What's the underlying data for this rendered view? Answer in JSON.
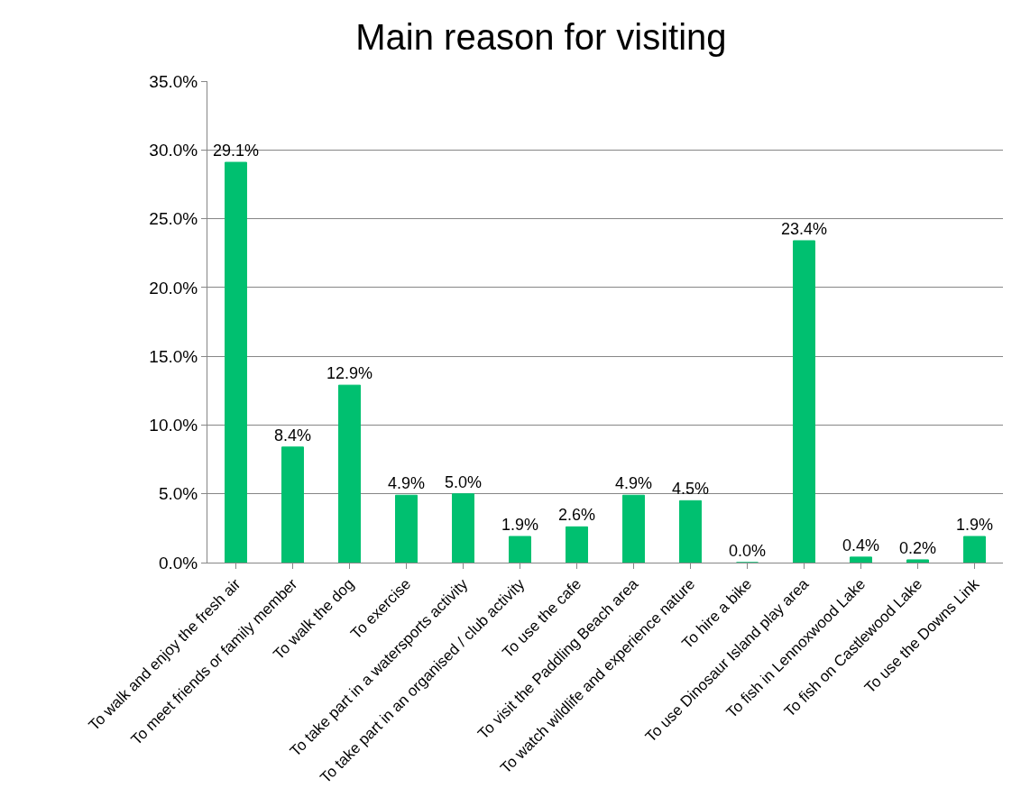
{
  "chart_data": {
    "type": "bar",
    "title": "Main reason for visiting",
    "categories": [
      "To walk and enjoy the fresh air",
      "To meet friends or family member",
      "To walk the dog",
      "To exercise",
      "To take part in a watersports activity",
      "To take part in an organised / club activity",
      "To use the cafe",
      "To visit the Paddling Beach area",
      "To watch wildlife and experience nature",
      "To hire a bike",
      "To use Dinosaur Island play area",
      "To fish in Lennoxwood Lake",
      "To fish on Castlewood Lake",
      "To use the Downs Link"
    ],
    "values": [
      29.1,
      8.4,
      12.9,
      4.9,
      5.0,
      1.9,
      2.6,
      4.9,
      4.5,
      0.0,
      23.4,
      0.4,
      0.2,
      1.9
    ],
    "value_labels": [
      "29.1%",
      "8.4%",
      "12.9%",
      "4.9%",
      "5.0%",
      "1.9%",
      "2.6%",
      "4.9%",
      "4.5%",
      "0.0%",
      "23.4%",
      "0.4%",
      "0.2%",
      "1.9%"
    ],
    "color": "#00c070",
    "ylim": [
      0,
      35
    ],
    "yticks": [
      {
        "value": 0,
        "label": "0.0%"
      },
      {
        "value": 5,
        "label": "5.0%"
      },
      {
        "value": 10,
        "label": "10.0%"
      },
      {
        "value": 15,
        "label": "15.0%"
      },
      {
        "value": 20,
        "label": "20.0%"
      },
      {
        "value": 25,
        "label": "25.0%"
      },
      {
        "value": 30,
        "label": "30.0%"
      },
      {
        "value": 35,
        "label": "35.0%"
      }
    ],
    "grid": "y"
  }
}
